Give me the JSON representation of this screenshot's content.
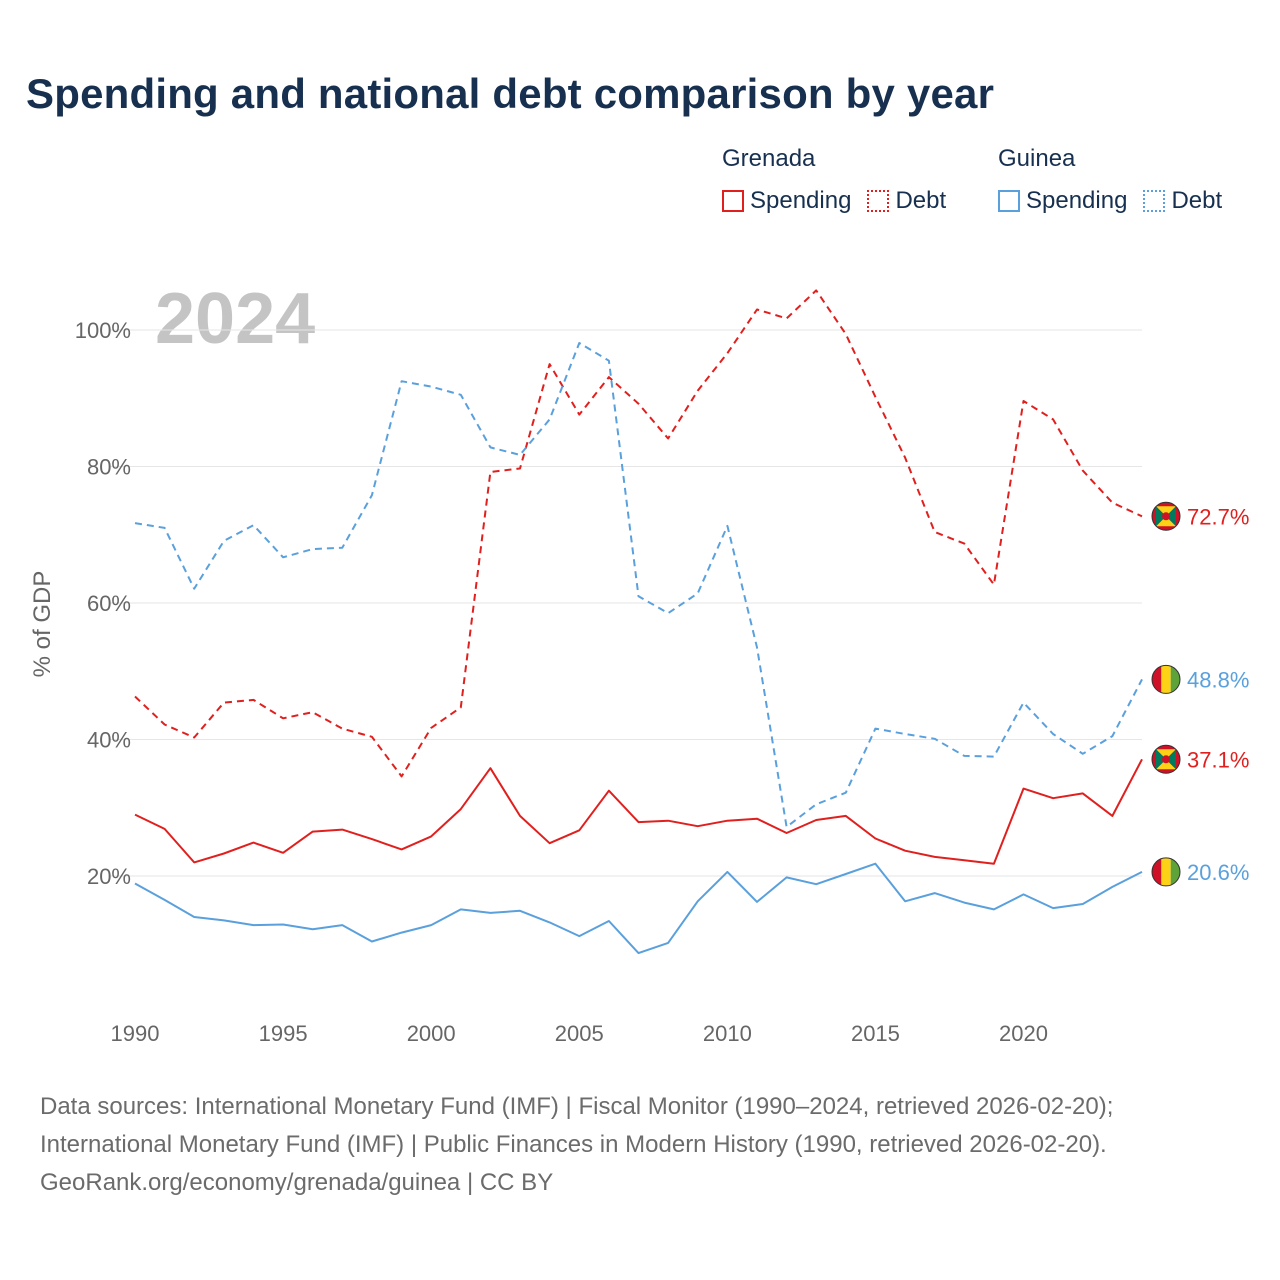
{
  "title": "Spending and national debt comparison by year",
  "legend": {
    "groups": [
      {
        "name": "Grenada",
        "color": "#e0201e",
        "items": [
          "Spending",
          "Debt"
        ]
      },
      {
        "name": "Guinea",
        "color": "#5aa0dc",
        "items": [
          "Spending",
          "Debt"
        ]
      }
    ]
  },
  "year_label": "2024",
  "footer": {
    "line1": "Data sources: International Monetary Fund (IMF) | Fiscal Monitor (1990–2024, retrieved 2026-02-20);",
    "line2": "International Monetary Fund (IMF) | Public Finances in Modern History (1990, retrieved 2026-02-20).",
    "line3": "GeoRank.org/economy/grenada/guinea | CC BY"
  },
  "chart_data": {
    "type": "line",
    "ylabel": "% of GDP",
    "ylim": [
      0,
      110
    ],
    "yticks": [
      20,
      40,
      60,
      80,
      100
    ],
    "ytick_labels": [
      "20%",
      "40%",
      "60%",
      "80%",
      "100%"
    ],
    "xticks": [
      1990,
      1995,
      2000,
      2005,
      2010,
      2015,
      2020
    ],
    "x": [
      1990,
      1991,
      1992,
      1993,
      1994,
      1995,
      1996,
      1997,
      1998,
      1999,
      2000,
      2001,
      2002,
      2003,
      2004,
      2005,
      2006,
      2007,
      2008,
      2009,
      2010,
      2011,
      2012,
      2013,
      2014,
      2015,
      2016,
      2017,
      2018,
      2019,
      2020,
      2021,
      2022,
      2023,
      2024
    ],
    "series": [
      {
        "name": "Grenada Spending",
        "country": "Grenada",
        "color": "#e0201e",
        "dashed": false,
        "end_label": "37.1%",
        "values": [
          29.0,
          26.9,
          22.0,
          23.3,
          24.9,
          23.4,
          26.5,
          26.8,
          25.4,
          23.9,
          25.8,
          29.8,
          35.8,
          28.8,
          24.8,
          26.7,
          32.5,
          27.9,
          28.1,
          27.3,
          28.1,
          28.4,
          26.3,
          28.2,
          28.8,
          25.5,
          23.7,
          22.8,
          22.3,
          21.8,
          32.8,
          31.4,
          32.1,
          28.8,
          37.1
        ]
      },
      {
        "name": "Grenada Debt",
        "country": "Grenada",
        "color": "#e0201e",
        "dashed": true,
        "end_label": "72.7%",
        "values": [
          46.3,
          42.2,
          40.3,
          45.4,
          45.8,
          43.1,
          44.0,
          41.6,
          40.4,
          34.6,
          41.7,
          44.7,
          79.2,
          79.7,
          95.0,
          87.6,
          93.1,
          89.2,
          84.1,
          91.1,
          96.6,
          103.0,
          101.7,
          105.8,
          99.4,
          90.2,
          81.3,
          70.4,
          68.7,
          62.7,
          89.6,
          86.9,
          79.4,
          74.7,
          72.7
        ]
      },
      {
        "name": "Guinea Spending",
        "country": "Guinea",
        "color": "#5aa0dc",
        "dashed": false,
        "end_label": "20.6%",
        "values": [
          18.9,
          16.5,
          14.0,
          13.5,
          12.8,
          12.9,
          12.2,
          12.8,
          10.4,
          11.7,
          12.8,
          15.1,
          14.6,
          14.9,
          13.2,
          11.2,
          13.4,
          8.7,
          10.2,
          16.3,
          20.6,
          16.2,
          19.8,
          18.8,
          20.3,
          21.8,
          16.3,
          17.5,
          16.1,
          15.1,
          17.3,
          15.3,
          15.9,
          18.4,
          20.6
        ]
      },
      {
        "name": "Guinea Debt",
        "country": "Guinea",
        "color": "#5aa0dc",
        "dashed": true,
        "end_label": "48.8%",
        "values": [
          71.7,
          71.0,
          62.1,
          69.1,
          71.4,
          66.7,
          67.9,
          68.1,
          75.8,
          92.5,
          91.7,
          90.5,
          82.8,
          81.7,
          86.9,
          98.1,
          95.5,
          61.0,
          58.5,
          61.4,
          71.3,
          53.5,
          27.2,
          30.5,
          32.2,
          41.6,
          40.8,
          40.1,
          37.6,
          37.5,
          45.4,
          40.8,
          37.9,
          40.5,
          48.8
        ]
      }
    ]
  }
}
